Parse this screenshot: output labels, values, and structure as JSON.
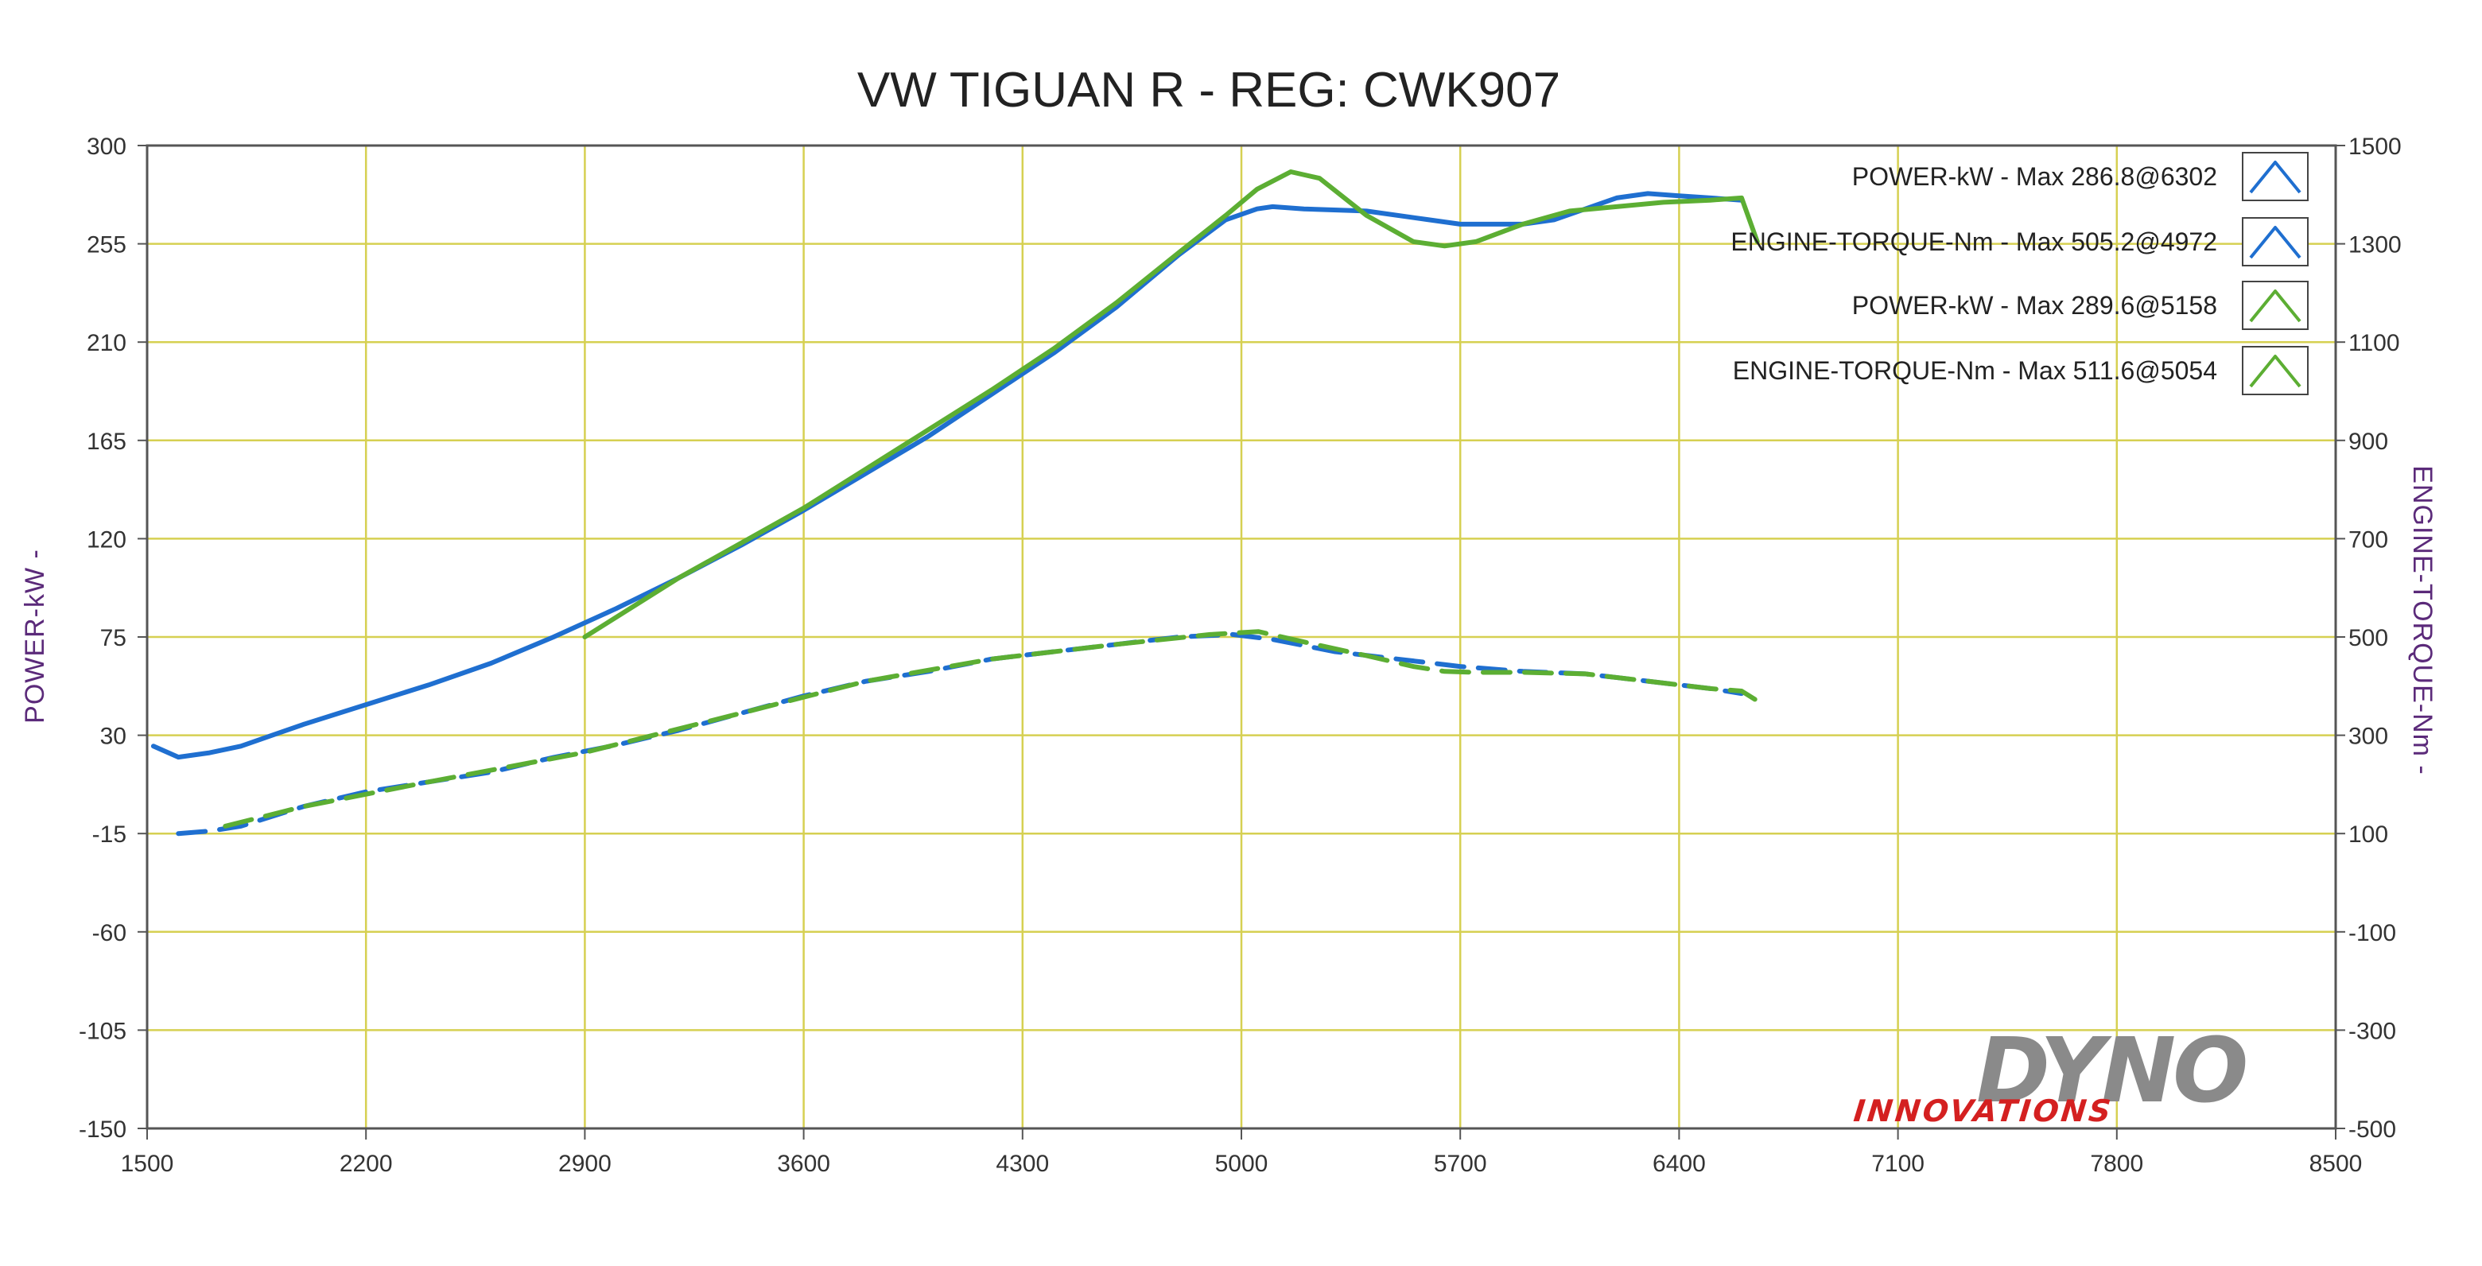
{
  "colors": {
    "plot_bg": "#ffffff",
    "grid": "#d6d052",
    "frame": "#555555",
    "series_blue": "#1f6fd0",
    "series_green": "#5cae33",
    "axis_title": "#5b2a7a",
    "logo_grey": "#8a8a8a",
    "logo_red": "#d42020"
  },
  "logo": {
    "main": "DYNO",
    "sub": "INNOVATIONS"
  },
  "chart_data": {
    "type": "line",
    "title": "VW TIGUAN R - REG: CWK907",
    "xlabel": "",
    "ylabel": "POWER-kW -",
    "y2label": "ENGINE-TORQUE-Nm -",
    "xlim": [
      1500,
      8500
    ],
    "ylim": [
      -150,
      300
    ],
    "y2lim": [
      -500,
      1500
    ],
    "x_ticks": [
      "1500",
      "2200",
      "2900",
      "3600",
      "4300",
      "5000",
      "5700",
      "6400",
      "7100",
      "7800",
      "8500"
    ],
    "y_ticks": [
      "300",
      "255",
      "210",
      "165",
      "120",
      "75",
      "30",
      "-15",
      "-60",
      "-105",
      "-150"
    ],
    "y2_ticks": [
      "1500",
      "1300",
      "1100",
      "900",
      "700",
      "500",
      "300",
      "100",
      "-100",
      "-300",
      "-500"
    ],
    "grid": true,
    "legend_position": "top-right",
    "series": [
      {
        "name": "POWER-kW - Max 286.8@6302",
        "axis": "left",
        "color": "#1f6fd0",
        "dash": "solid",
        "x": [
          1520,
          1600,
          1700,
          1800,
          1900,
          2000,
          2200,
          2400,
          2600,
          2800,
          3000,
          3200,
          3400,
          3600,
          3800,
          4000,
          4200,
          4400,
          4600,
          4800,
          4950,
          5050,
          5100,
          5200,
          5400,
          5600,
          5700,
          5800,
          5900,
          6000,
          6100,
          6200,
          6300,
          6400,
          6500,
          6600
        ],
        "y": [
          25,
          20,
          22,
          25,
          30,
          35,
          44,
          53,
          63,
          75,
          88,
          102,
          117,
          133,
          150,
          167,
          186,
          205,
          226,
          250,
          266,
          271,
          272,
          271,
          270,
          266,
          264,
          264,
          264,
          266,
          271,
          276,
          278,
          277,
          276,
          275
        ]
      },
      {
        "name": "ENGINE-TORQUE-Nm - Max 505.2@4972",
        "axis": "right",
        "color": "#1f6fd0",
        "dash": "dashed",
        "x": [
          1600,
          1700,
          1800,
          2000,
          2200,
          2400,
          2600,
          2800,
          3000,
          3200,
          3400,
          3600,
          3800,
          4000,
          4200,
          4400,
          4600,
          4800,
          4972,
          5100,
          5300,
          5500,
          5700,
          5900,
          6100,
          6300,
          6500,
          6600
        ],
        "y": [
          100,
          105,
          115,
          155,
          185,
          205,
          225,
          255,
          280,
          310,
          345,
          380,
          410,
          430,
          455,
          470,
          485,
          500,
          505,
          495,
          470,
          455,
          440,
          430,
          425,
          410,
          395,
          385
        ]
      },
      {
        "name": "POWER-kW - Max 289.6@5158",
        "axis": "left",
        "color": "#5cae33",
        "dash": "solid",
        "x": [
          2900,
          3200,
          3400,
          3600,
          3800,
          4000,
          4200,
          4400,
          4600,
          4800,
          4950,
          5050,
          5158,
          5250,
          5400,
          5550,
          5650,
          5750,
          5900,
          6050,
          6200,
          6350,
          6500,
          6600,
          6650
        ],
        "y": [
          75,
          102,
          118,
          134,
          152,
          170,
          188,
          207,
          228,
          251,
          268,
          280,
          288,
          285,
          268,
          256,
          254,
          256,
          264,
          270,
          272,
          274,
          275,
          276,
          256
        ]
      },
      {
        "name": "ENGINE-TORQUE-Nm - Max 511.6@5054",
        "axis": "right",
        "color": "#5cae33",
        "dash": "dashed",
        "x": [
          1750,
          2000,
          2400,
          2900,
          3400,
          3800,
          4200,
          4600,
          4900,
          5054,
          5200,
          5400,
          5550,
          5650,
          5750,
          5900,
          6100,
          6300,
          6500,
          6600,
          6650
        ],
        "y": [
          115,
          155,
          205,
          265,
          345,
          410,
          455,
          485,
          505,
          511,
          490,
          462,
          440,
          430,
          428,
          428,
          425,
          410,
          395,
          390,
          370
        ]
      }
    ]
  }
}
